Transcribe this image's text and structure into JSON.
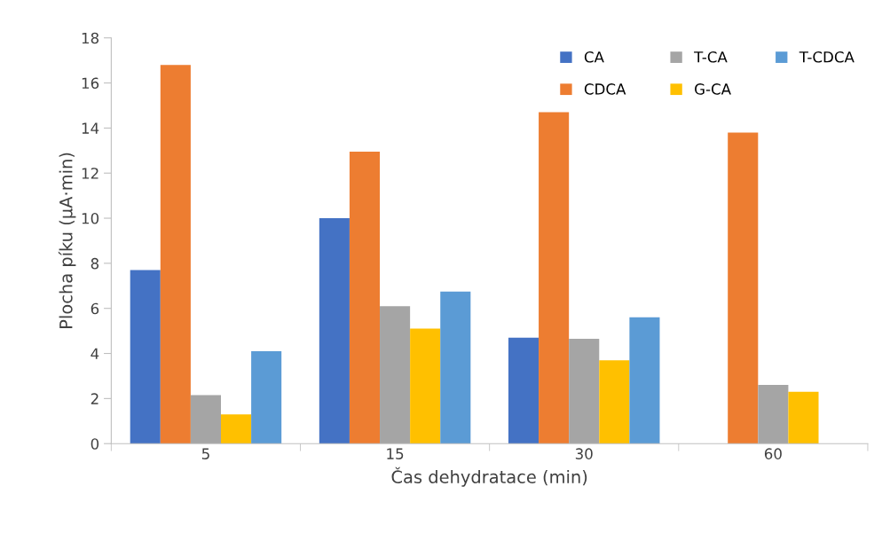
{
  "chart_data": {
    "type": "bar",
    "xlabel": "Čas dehydratace (min)",
    "ylabel": "Plocha píku (µA·min)",
    "categories": [
      "5",
      "15",
      "30",
      "60"
    ],
    "series": [
      {
        "name": "CA",
        "color": "#4472c4",
        "values": [
          7.7,
          10.0,
          4.7,
          null
        ]
      },
      {
        "name": "CDCA",
        "color": "#ed7d31",
        "values": [
          16.8,
          12.95,
          14.7,
          13.8
        ]
      },
      {
        "name": "T-CA",
        "color": "#a5a5a5",
        "values": [
          2.15,
          6.1,
          4.65,
          2.6
        ]
      },
      {
        "name": "G-CA",
        "color": "#ffc000",
        "values": [
          1.3,
          5.1,
          3.7,
          2.3
        ]
      },
      {
        "name": "T-CDCA",
        "color": "#5b9bd5",
        "values": [
          4.1,
          6.75,
          5.6,
          null
        ]
      }
    ],
    "ylim": [
      0,
      18
    ],
    "yticks": [
      0,
      2,
      4,
      6,
      8,
      10,
      12,
      14,
      16,
      18
    ],
    "grid": false,
    "legend": "top right"
  }
}
